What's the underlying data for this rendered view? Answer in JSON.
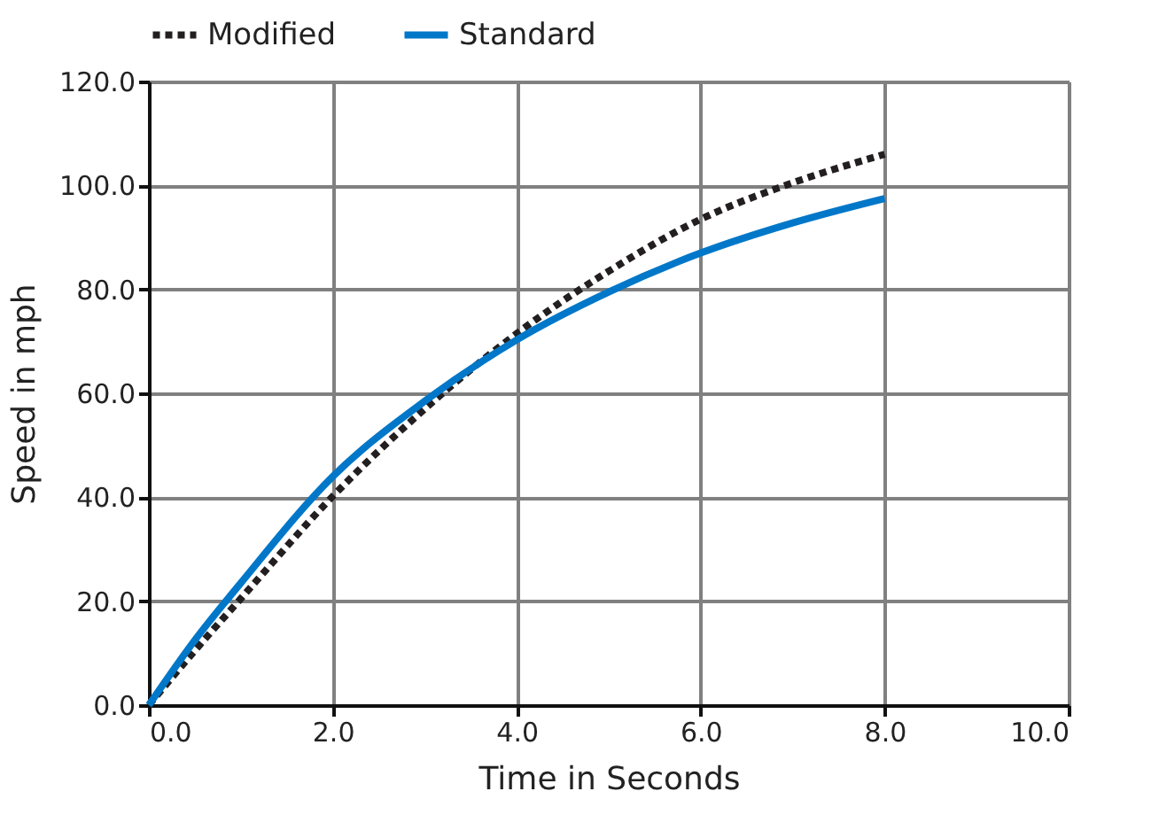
{
  "chart_data": {
    "type": "line",
    "xlabel": "Time in Seconds",
    "ylabel": "Speed in mph",
    "x": [
      0,
      0.5,
      1,
      2,
      3,
      4,
      5,
      6,
      7,
      8
    ],
    "series": [
      {
        "name": "Modified",
        "color": "#231f20",
        "line_style": "dotted",
        "values": [
          0,
          10.5,
          20.5,
          40.2,
          57,
          71.5,
          83.5,
          93.5,
          100.5,
          106
        ]
      },
      {
        "name": "Standard",
        "color": "#0077c8",
        "line_style": "solid",
        "values": [
          0,
          12.5,
          23.5,
          44,
          58.5,
          70.3,
          79.5,
          87,
          92.8,
          97.5
        ]
      }
    ],
    "xlim": [
      0,
      10
    ],
    "xticks": [
      {
        "value": 0,
        "label": "0.0"
      },
      {
        "value": 2,
        "label": "2.0"
      },
      {
        "value": 4,
        "label": "4.0"
      },
      {
        "value": 6,
        "label": "6.0"
      },
      {
        "value": 8,
        "label": "8.0"
      },
      {
        "value": 10,
        "label": "10.0"
      }
    ],
    "ylim": [
      0,
      120
    ],
    "yticks": [
      {
        "value": 0,
        "label": "0.0"
      },
      {
        "value": 20,
        "label": "20.0"
      },
      {
        "value": 40,
        "label": "40.0"
      },
      {
        "value": 60,
        "label": "60.0"
      },
      {
        "value": 80,
        "label": "80.0"
      },
      {
        "value": 100,
        "label": "100.0"
      },
      {
        "value": 120,
        "label": "120.0"
      }
    ],
    "grid": true,
    "legend": "top",
    "marker": "none"
  }
}
